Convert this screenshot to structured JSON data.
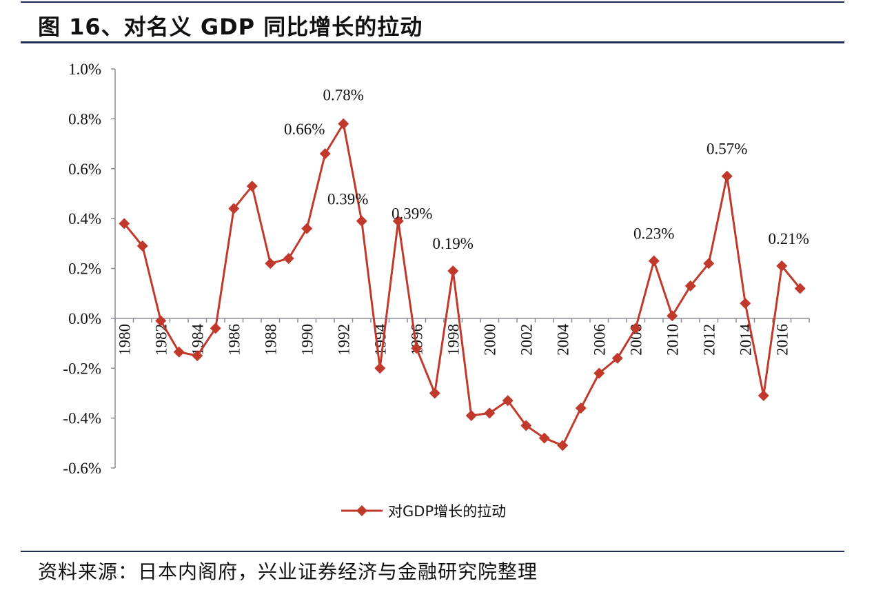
{
  "title": "图 16、对名义 GDP 同比增长的拉动",
  "source": "资料来源：日本内阁府，兴业证券经济与金融研究院整理",
  "chart_data": {
    "type": "line",
    "title": "",
    "xlabel": "",
    "ylabel": "",
    "x": [
      1980,
      1981,
      1982,
      1983,
      1984,
      1985,
      1986,
      1987,
      1988,
      1989,
      1990,
      1991,
      1992,
      1993,
      1994,
      1995,
      1996,
      1997,
      1998,
      1999,
      2000,
      2001,
      2002,
      2003,
      2004,
      2005,
      2006,
      2007,
      2008,
      2009,
      2010,
      2011,
      2012,
      2013,
      2014,
      2015,
      2016,
      2017
    ],
    "x_tick_labels": [
      "1980",
      "1982",
      "1984",
      "1986",
      "1988",
      "1990",
      "1992",
      "1994",
      "1996",
      "1998",
      "2000",
      "2002",
      "2004",
      "2006",
      "2008",
      "2010",
      "2012",
      "2014",
      "2016"
    ],
    "y_tick_labels": [
      "1.0%",
      "0.8%",
      "0.6%",
      "0.4%",
      "0.2%",
      "0.0%",
      "-0.2%",
      "-0.4%",
      "-0.6%"
    ],
    "ylim": [
      -0.6,
      1.0
    ],
    "y_unit": "%",
    "grid": false,
    "legend_position": "bottom",
    "series": [
      {
        "name": "对GDP增长的拉动",
        "color": "#c0392b",
        "marker": "diamond",
        "values": [
          0.38,
          0.29,
          -0.01,
          -0.135,
          -0.15,
          -0.04,
          0.44,
          0.53,
          0.22,
          0.24,
          0.36,
          0.66,
          0.78,
          0.39,
          -0.2,
          0.39,
          -0.12,
          -0.3,
          0.19,
          -0.39,
          -0.38,
          -0.33,
          -0.43,
          -0.48,
          -0.51,
          -0.36,
          -0.22,
          -0.16,
          -0.04,
          0.23,
          0.01,
          0.13,
          0.22,
          0.57,
          0.06,
          -0.31,
          0.21,
          0.12
        ]
      }
    ],
    "annotations": [
      {
        "x": 1991,
        "text": "0.66%"
      },
      {
        "x": 1992,
        "text": "0.78%"
      },
      {
        "x": 1993,
        "text": "0.39%"
      },
      {
        "x": 1995,
        "text": "0.39%"
      },
      {
        "x": 1998,
        "text": "0.19%"
      },
      {
        "x": 2009,
        "text": "0.23%"
      },
      {
        "x": 2013,
        "text": "0.57%"
      },
      {
        "x": 2016,
        "text": "0.21%"
      }
    ]
  }
}
